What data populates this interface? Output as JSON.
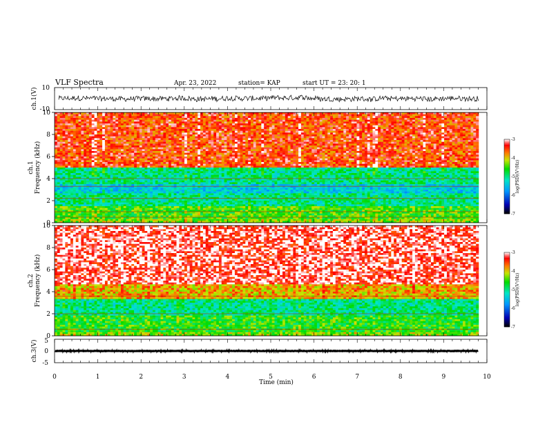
{
  "header": {
    "title": "VLF Spectra",
    "date": "Apr. 23, 2022",
    "station": "station= KAP",
    "start": "start UT = 23: 20: 1"
  },
  "chart_data": [
    {
      "type": "line",
      "name": "ch1-waveform",
      "ylabel": "ch.1(V)",
      "ylim": [
        -10,
        10
      ],
      "yticks": [
        "10",
        "-10"
      ],
      "xlim": [
        0,
        10
      ],
      "baseline": 0,
      "amplitude_range": [
        -4,
        4
      ]
    },
    {
      "type": "heatmap",
      "name": "ch1-spectrogram",
      "ylabel_line1": "ch.1",
      "ylabel_line2": "Frequency (kHz)",
      "ylim": [
        0,
        10
      ],
      "yticks": [
        "0",
        "2",
        "4",
        "6",
        "8",
        "10"
      ],
      "xlim": [
        0,
        10
      ],
      "colorbar": {
        "label": "log(PSD)(V²/Hz)",
        "range": [
          -7,
          -3
        ],
        "ticks": [
          "-3",
          "-4",
          "-5",
          "-6",
          "-7"
        ]
      },
      "bands": [
        {
          "f": [
            0,
            0.4
          ],
          "level": -4.3
        },
        {
          "f": [
            0.4,
            1.5
          ],
          "level": -4.5
        },
        {
          "f": [
            1.5,
            2.6
          ],
          "level": -5.0
        },
        {
          "f": [
            2.6,
            3.5
          ],
          "level": -5.4
        },
        {
          "f": [
            3.5,
            5.0
          ],
          "level": -5.0
        },
        {
          "f": [
            5.0,
            10.0
          ],
          "level": -3.5
        }
      ],
      "lines_khz": [
        0.5,
        1.0,
        2.2,
        3.3,
        4.0
      ]
    },
    {
      "type": "heatmap",
      "name": "ch2-spectrogram",
      "ylabel_line1": "ch.2",
      "ylabel_line2": "Frequency (kHz)",
      "ylim": [
        0,
        10
      ],
      "yticks": [
        "0",
        "2",
        "4",
        "6",
        "8",
        "10"
      ],
      "xlim": [
        0,
        10
      ],
      "colorbar": {
        "label": "log(PSD)(V²/Hz)",
        "range": [
          -7,
          -3
        ],
        "ticks": [
          "-3",
          "-4",
          "-5",
          "-6",
          "-7"
        ]
      },
      "bands": [
        {
          "f": [
            0,
            0.4
          ],
          "level": -4.3
        },
        {
          "f": [
            0.4,
            1.8
          ],
          "level": -4.6
        },
        {
          "f": [
            1.8,
            3.4
          ],
          "level": -5.0
        },
        {
          "f": [
            3.4,
            4.6
          ],
          "level": -3.9
        },
        {
          "f": [
            4.6,
            10.0
          ],
          "level": -3.2
        }
      ],
      "lines_khz": [
        0.6,
        2.0,
        3.6
      ]
    },
    {
      "type": "line",
      "name": "ch3-waveform",
      "ylabel": "ch.3(V)",
      "ylim": [
        -5,
        5
      ],
      "yticks": [
        "5",
        "0",
        "-5"
      ],
      "xlim": [
        0,
        10
      ],
      "baseline": 0,
      "amplitude_range": [
        -0.5,
        0.5
      ]
    }
  ],
  "xaxis": {
    "label": "Time (min)",
    "ticks": [
      "0",
      "1",
      "2",
      "3",
      "4",
      "5",
      "6",
      "7",
      "8",
      "9",
      "10"
    ]
  }
}
